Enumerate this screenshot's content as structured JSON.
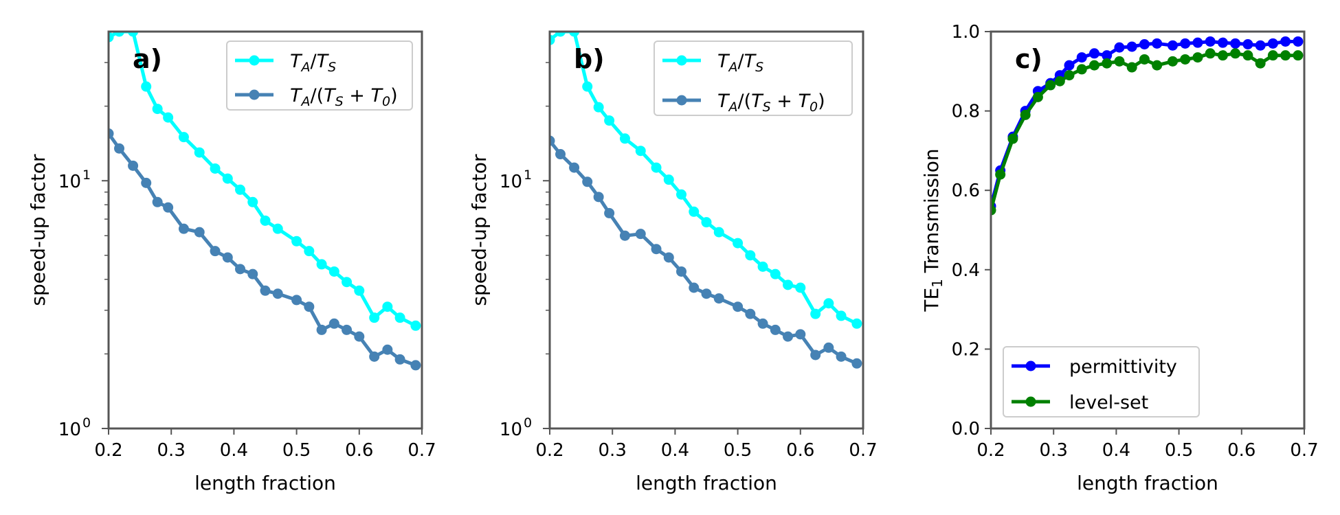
{
  "chart_data": [
    {
      "type": "line",
      "panel_label": "a)",
      "yscale": "log",
      "xlabel": "length fraction",
      "ylabel": "speed-up factor",
      "xlim": [
        0.2,
        0.7
      ],
      "ylim": [
        1,
        40
      ],
      "xticks": [
        "0.2",
        "0.3",
        "0.4",
        "0.5",
        "0.6",
        "0.7"
      ],
      "yticks": [
        {
          "value": 1,
          "base": "10",
          "exp": "0"
        },
        {
          "value": 10,
          "base": "10",
          "exp": "1"
        }
      ],
      "legend_position": "top-right",
      "series": [
        {
          "name": "T_A/T_S",
          "color": "#00ffff",
          "x": [
            0.2,
            0.217,
            0.239,
            0.26,
            0.278,
            0.295,
            0.32,
            0.345,
            0.37,
            0.39,
            0.41,
            0.43,
            0.45,
            0.47,
            0.5,
            0.52,
            0.54,
            0.56,
            0.58,
            0.6,
            0.624,
            0.645,
            0.665,
            0.69
          ],
          "y": [
            38,
            40,
            40,
            24,
            19.5,
            18,
            15,
            13,
            11.2,
            10.2,
            9.2,
            8.2,
            6.9,
            6.4,
            5.7,
            5.2,
            4.6,
            4.3,
            3.9,
            3.6,
            2.8,
            3.1,
            2.8,
            2.6
          ]
        },
        {
          "name": "T_A/(T_S + T_0)",
          "color": "#4682b4",
          "x": [
            0.2,
            0.217,
            0.239,
            0.26,
            0.278,
            0.295,
            0.32,
            0.345,
            0.37,
            0.39,
            0.41,
            0.43,
            0.45,
            0.47,
            0.5,
            0.52,
            0.54,
            0.56,
            0.58,
            0.6,
            0.624,
            0.645,
            0.665,
            0.69
          ],
          "y": [
            15.5,
            13.5,
            11.5,
            9.8,
            8.2,
            7.8,
            6.4,
            6.2,
            5.2,
            4.9,
            4.4,
            4.2,
            3.6,
            3.5,
            3.3,
            3.1,
            2.5,
            2.65,
            2.5,
            2.35,
            1.95,
            2.08,
            1.9,
            1.8
          ]
        }
      ]
    },
    {
      "type": "line",
      "panel_label": "b)",
      "yscale": "log",
      "xlabel": "length fraction",
      "ylabel": "speed-up factor",
      "xlim": [
        0.2,
        0.7
      ],
      "ylim": [
        1,
        40
      ],
      "xticks": [
        "0.2",
        "0.3",
        "0.4",
        "0.5",
        "0.6",
        "0.7"
      ],
      "yticks": [
        {
          "value": 1,
          "base": "10",
          "exp": "0"
        },
        {
          "value": 10,
          "base": "10",
          "exp": "1"
        }
      ],
      "legend_position": "top-right",
      "series": [
        {
          "name": "T_A/T_S",
          "color": "#00ffff",
          "x": [
            0.2,
            0.217,
            0.239,
            0.26,
            0.278,
            0.295,
            0.32,
            0.345,
            0.37,
            0.39,
            0.41,
            0.43,
            0.45,
            0.47,
            0.5,
            0.52,
            0.54,
            0.56,
            0.58,
            0.6,
            0.624,
            0.645,
            0.665,
            0.69
          ],
          "y": [
            37,
            40,
            40,
            24,
            19.8,
            17.5,
            14.8,
            13.2,
            11.3,
            10.1,
            8.8,
            7.5,
            6.8,
            6.2,
            5.6,
            5.0,
            4.5,
            4.2,
            3.8,
            3.7,
            2.9,
            3.2,
            2.85,
            2.65
          ]
        },
        {
          "name": "T_A/(T_S + T_0)",
          "color": "#4682b4",
          "x": [
            0.2,
            0.217,
            0.239,
            0.26,
            0.278,
            0.295,
            0.32,
            0.345,
            0.37,
            0.39,
            0.41,
            0.43,
            0.45,
            0.47,
            0.5,
            0.52,
            0.54,
            0.56,
            0.58,
            0.6,
            0.624,
            0.645,
            0.665,
            0.69
          ],
          "y": [
            14.5,
            12.8,
            11.3,
            9.9,
            8.6,
            7.4,
            6.0,
            6.1,
            5.3,
            4.9,
            4.3,
            3.7,
            3.5,
            3.35,
            3.1,
            2.9,
            2.65,
            2.5,
            2.35,
            2.4,
            1.98,
            2.12,
            1.95,
            1.83
          ]
        }
      ]
    },
    {
      "type": "line",
      "panel_label": "c)",
      "yscale": "linear",
      "xlabel": "length fraction",
      "ylabel": "TE1 Transmission",
      "ylabel_parts": {
        "main": "TE",
        "sub": "1",
        "rest": " Transmission"
      },
      "xlim": [
        0.2,
        0.7
      ],
      "ylim": [
        0.0,
        1.0
      ],
      "xticks": [
        "0.2",
        "0.3",
        "0.4",
        "0.5",
        "0.6",
        "0.7"
      ],
      "yticks": [
        "0.0",
        "0.2",
        "0.4",
        "0.6",
        "0.8",
        "1.0"
      ],
      "legend_position": "bottom-left",
      "series": [
        {
          "name": "permittivity",
          "color": "#0000ff",
          "x": [
            0.2,
            0.215,
            0.235,
            0.255,
            0.275,
            0.295,
            0.31,
            0.325,
            0.345,
            0.365,
            0.385,
            0.405,
            0.425,
            0.445,
            0.465,
            0.49,
            0.51,
            0.53,
            0.55,
            0.57,
            0.59,
            0.61,
            0.63,
            0.65,
            0.67,
            0.69
          ],
          "y": [
            0.56,
            0.65,
            0.735,
            0.8,
            0.85,
            0.87,
            0.89,
            0.915,
            0.935,
            0.945,
            0.94,
            0.96,
            0.962,
            0.968,
            0.97,
            0.965,
            0.97,
            0.972,
            0.975,
            0.972,
            0.97,
            0.968,
            0.965,
            0.97,
            0.975,
            0.975
          ]
        },
        {
          "name": "level-set",
          "color": "#008000",
          "x": [
            0.2,
            0.215,
            0.235,
            0.255,
            0.275,
            0.295,
            0.31,
            0.325,
            0.345,
            0.365,
            0.385,
            0.405,
            0.425,
            0.445,
            0.465,
            0.49,
            0.51,
            0.53,
            0.55,
            0.57,
            0.59,
            0.61,
            0.63,
            0.65,
            0.67,
            0.69
          ],
          "y": [
            0.55,
            0.64,
            0.73,
            0.79,
            0.835,
            0.865,
            0.875,
            0.89,
            0.905,
            0.915,
            0.92,
            0.925,
            0.91,
            0.93,
            0.915,
            0.925,
            0.93,
            0.935,
            0.945,
            0.94,
            0.945,
            0.94,
            0.92,
            0.94,
            0.94,
            0.94
          ]
        }
      ]
    }
  ]
}
